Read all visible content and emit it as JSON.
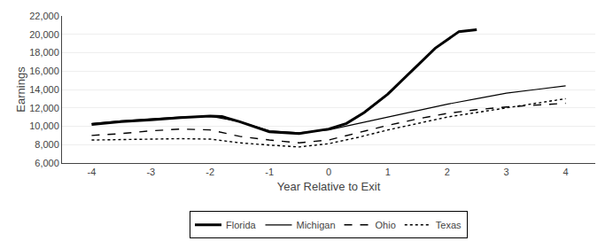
{
  "chart_data": {
    "type": "line",
    "xlabel": "Year Relative to Exit",
    "ylabel": "Earnings",
    "xlim": [
      -4.5,
      4.5
    ],
    "ylim": [
      6000,
      22000
    ],
    "xticks": [
      -4,
      -3,
      -2,
      -1,
      0,
      1,
      2,
      3,
      4
    ],
    "yticks": [
      {
        "value": 6000,
        "label": "6,000"
      },
      {
        "value": 8000,
        "label": "8,000"
      },
      {
        "value": 10000,
        "label": "10,000"
      },
      {
        "value": 12000,
        "label": "12,000"
      },
      {
        "value": 14000,
        "label": "14,000"
      },
      {
        "value": 16000,
        "label": "16,000"
      },
      {
        "value": 18000,
        "label": "18,000"
      },
      {
        "value": 20000,
        "label": "20,000"
      },
      {
        "value": 22000,
        "label": "22,000"
      }
    ],
    "grid": "y",
    "legend": "bottom",
    "series": [
      {
        "name": "Florida",
        "color": "#000000",
        "line_style": "solid",
        "x": [
          -4,
          -3.5,
          -3,
          -2.5,
          -2,
          -1.8,
          -1.5,
          -1,
          -0.5,
          0,
          0.3,
          0.6,
          1,
          1.4,
          1.8,
          2.2,
          2.5
        ],
        "values": [
          10200,
          10500,
          10700,
          10950,
          11100,
          11050,
          10500,
          9400,
          9200,
          9700,
          10300,
          11500,
          13500,
          16000,
          18500,
          20300,
          20500
        ]
      },
      {
        "name": "Michigan",
        "color": "#000000",
        "line_style": "solid",
        "x": [
          -4,
          -3.5,
          -3,
          -2.5,
          -2,
          -1.5,
          -1,
          -0.5,
          0,
          0.5,
          1,
          1.5,
          2,
          2.5,
          3,
          3.5,
          4
        ],
        "values": [
          10300,
          10600,
          10800,
          11000,
          11100,
          10500,
          9500,
          9300,
          9600,
          10300,
          11000,
          11700,
          12400,
          13000,
          13600,
          14000,
          14400
        ]
      },
      {
        "name": "Ohio",
        "color": "#000000",
        "line_style": "dashed",
        "x": [
          -4,
          -3.5,
          -3,
          -2.5,
          -2,
          -1.5,
          -1,
          -0.5,
          0,
          0.5,
          1,
          1.5,
          2,
          2.5,
          3,
          3.5,
          4
        ],
        "values": [
          9000,
          9200,
          9500,
          9700,
          9600,
          8900,
          8500,
          8200,
          8500,
          9300,
          10100,
          10800,
          11400,
          11800,
          12100,
          12300,
          12500
        ]
      },
      {
        "name": "Texas",
        "color": "#000000",
        "line_style": "dotted",
        "x": [
          -4,
          -3.5,
          -3,
          -2.5,
          -2,
          -1.5,
          -1,
          -0.5,
          0,
          0.5,
          1,
          1.5,
          2,
          2.5,
          3,
          3.5,
          4
        ],
        "values": [
          8500,
          8550,
          8600,
          8650,
          8600,
          8200,
          7950,
          7750,
          8100,
          8800,
          9600,
          10300,
          11000,
          11500,
          12000,
          12500,
          13000
        ]
      }
    ]
  }
}
